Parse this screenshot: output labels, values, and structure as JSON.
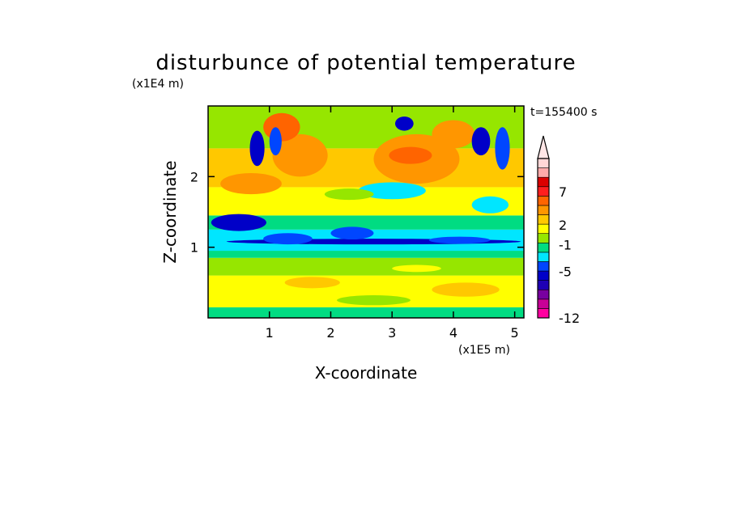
{
  "chart_data": {
    "type": "heatmap",
    "title": "disturbunce of potential temperature",
    "xlabel": "X-coordinate",
    "ylabel": "Z-coordinate",
    "x_unit": "(x1E5 m)",
    "y_unit": "(x1E4 m)",
    "time_label": "t=155400 s",
    "x_ticks": [
      "1",
      "2",
      "3",
      "4",
      "5"
    ],
    "x_tick_values": [
      1,
      2,
      3,
      4,
      5
    ],
    "y_ticks": [
      "1",
      "2"
    ],
    "y_tick_values": [
      1,
      2
    ],
    "xlim": [
      0,
      5.15
    ],
    "ylim": [
      0,
      3.0
    ],
    "colorbar": {
      "tick_labels": [
        "7",
        "2",
        "-1",
        "-5",
        "-12"
      ],
      "tick_values": [
        7,
        2,
        -1,
        -5,
        -12
      ],
      "colors": [
        "#ff00a0",
        "#c80096",
        "#7800a0",
        "#1e00b4",
        "#0000c8",
        "#0046ff",
        "#00e6ff",
        "#00dc82",
        "#96e600",
        "#ffff00",
        "#ffc800",
        "#ff9600",
        "#ff6400",
        "#ff1e1e",
        "#dc0000",
        "#ffaaaa",
        "#ffd7d7"
      ],
      "extend": "max"
    },
    "bands": [
      {
        "z": [
          0.0,
          0.15
        ],
        "color": "#00dc82"
      },
      {
        "z": [
          0.15,
          0.6
        ],
        "color": "#ffff00"
      },
      {
        "z": [
          0.6,
          0.85
        ],
        "color": "#96e600"
      },
      {
        "z": [
          0.85,
          0.95
        ],
        "color": "#00dc82"
      },
      {
        "z": [
          0.95,
          1.25
        ],
        "color": "#00e6ff"
      },
      {
        "z": [
          1.25,
          1.45
        ],
        "color": "#00dc82"
      },
      {
        "z": [
          1.45,
          1.85
        ],
        "color": "#ffff00"
      },
      {
        "z": [
          1.85,
          2.4
        ],
        "color": "#ffc800"
      },
      {
        "z": [
          2.4,
          3.0
        ],
        "color": "#96e600"
      }
    ],
    "patches": [
      {
        "x": 0.5,
        "z": 1.35,
        "rx": 0.45,
        "rz": 0.12,
        "color": "#0000c8"
      },
      {
        "x": 2.7,
        "z": 1.08,
        "rx": 2.4,
        "rz": 0.04,
        "color": "#0000c8"
      },
      {
        "x": 1.3,
        "z": 1.12,
        "rx": 0.4,
        "rz": 0.08,
        "color": "#0046ff"
      },
      {
        "x": 2.35,
        "z": 1.2,
        "rx": 0.35,
        "rz": 0.09,
        "color": "#0046ff"
      },
      {
        "x": 4.1,
        "z": 1.1,
        "rx": 0.5,
        "rz": 0.05,
        "color": "#0046ff"
      },
      {
        "x": 3.4,
        "z": 2.25,
        "rx": 0.7,
        "rz": 0.35,
        "color": "#ff9600"
      },
      {
        "x": 1.5,
        "z": 2.3,
        "rx": 0.45,
        "rz": 0.3,
        "color": "#ff9600"
      },
      {
        "x": 0.7,
        "z": 1.9,
        "rx": 0.5,
        "rz": 0.15,
        "color": "#ff9600"
      },
      {
        "x": 4.0,
        "z": 2.6,
        "rx": 0.35,
        "rz": 0.2,
        "color": "#ff9600"
      },
      {
        "x": 1.2,
        "z": 2.7,
        "rx": 0.3,
        "rz": 0.2,
        "color": "#ff6400"
      },
      {
        "x": 3.3,
        "z": 2.3,
        "rx": 0.35,
        "rz": 0.12,
        "color": "#ff6400"
      },
      {
        "x": 0.8,
        "z": 2.4,
        "rx": 0.12,
        "rz": 0.25,
        "color": "#0000c8"
      },
      {
        "x": 1.1,
        "z": 2.5,
        "rx": 0.1,
        "rz": 0.2,
        "color": "#0046ff"
      },
      {
        "x": 3.2,
        "z": 2.75,
        "rx": 0.15,
        "rz": 0.1,
        "color": "#0000c8"
      },
      {
        "x": 4.45,
        "z": 2.5,
        "rx": 0.15,
        "rz": 0.2,
        "color": "#0000c8"
      },
      {
        "x": 4.8,
        "z": 2.4,
        "rx": 0.12,
        "rz": 0.3,
        "color": "#0046ff"
      },
      {
        "x": 3.0,
        "z": 1.8,
        "rx": 0.55,
        "rz": 0.12,
        "color": "#00e6ff"
      },
      {
        "x": 4.6,
        "z": 1.6,
        "rx": 0.3,
        "rz": 0.12,
        "color": "#00e6ff"
      },
      {
        "x": 2.3,
        "z": 1.75,
        "rx": 0.4,
        "rz": 0.08,
        "color": "#96e600"
      },
      {
        "x": 4.2,
        "z": 0.4,
        "rx": 0.55,
        "rz": 0.1,
        "color": "#ffc800"
      },
      {
        "x": 1.7,
        "z": 0.5,
        "rx": 0.45,
        "rz": 0.08,
        "color": "#ffc800"
      },
      {
        "x": 3.4,
        "z": 0.7,
        "rx": 0.4,
        "rz": 0.05,
        "color": "#ffff00"
      },
      {
        "x": 2.7,
        "z": 0.25,
        "rx": 0.6,
        "rz": 0.07,
        "color": "#96e600"
      }
    ]
  }
}
